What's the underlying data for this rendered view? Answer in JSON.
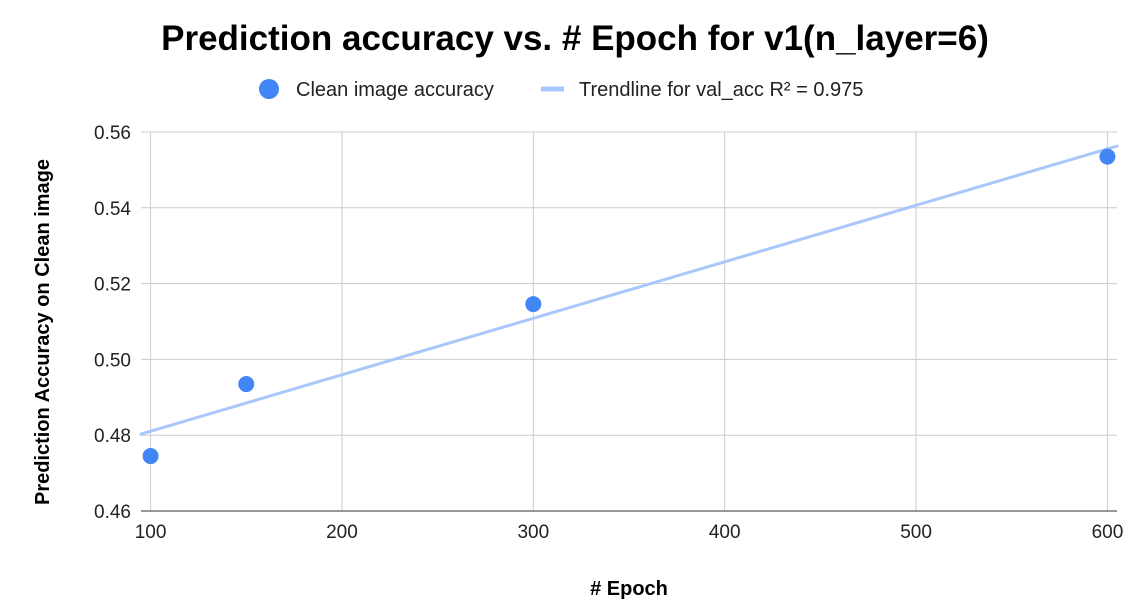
{
  "chart_data": {
    "type": "scatter",
    "title": "Prediction accuracy vs. # Epoch for v1(n_layer=6)",
    "xlabel": "# Epoch",
    "ylabel": "Prediction Accuracy on Clean image",
    "xlim": [
      95,
      605
    ],
    "ylim": [
      0.46,
      0.56
    ],
    "x_ticks": [
      "100",
      "200",
      "300",
      "400",
      "500",
      "600"
    ],
    "y_ticks": [
      "0.46",
      "0.48",
      "0.50",
      "0.52",
      "0.54",
      "0.56"
    ],
    "grid": true,
    "legend_position": "top",
    "series": [
      {
        "name": "Clean image accuracy",
        "x": [
          100,
          150,
          300,
          600
        ],
        "y": [
          0.4745,
          0.4935,
          0.5146,
          0.5535
        ],
        "color": "#4285f4"
      }
    ],
    "trendline": {
      "name": "Trendline for val_acc R² = 0.975",
      "x": [
        95,
        605
      ],
      "y": [
        0.4803,
        0.5563
      ],
      "color": "#a8c7fa"
    }
  }
}
